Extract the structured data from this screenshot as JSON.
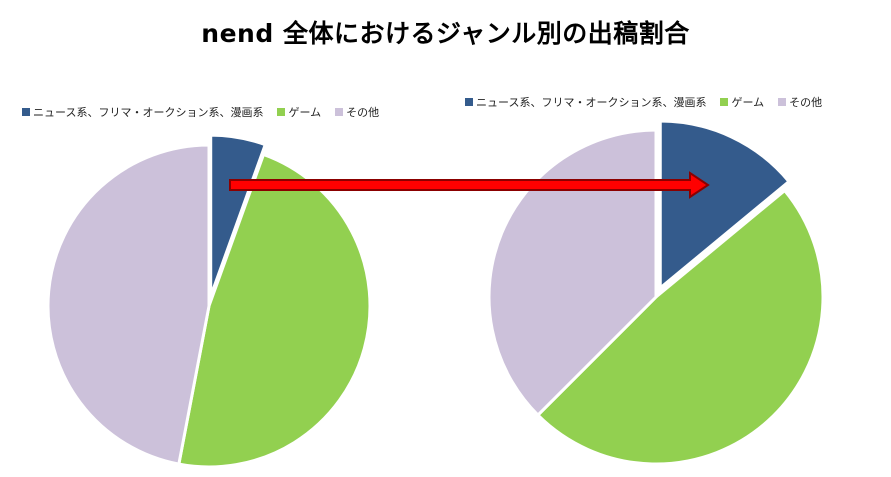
{
  "title": "nend 全体におけるジャンル別の出稿割合",
  "colors": {
    "news": "#345B8C",
    "game": "#92D050",
    "other": "#CCC1DA",
    "arrow_fill": "#FF0000",
    "arrow_stroke": "#8B0000"
  },
  "chart_data": [
    {
      "type": "pie",
      "legend_position": "top-left",
      "labels": [
        "ニュース系、フリマ・オークション系、漫画系",
        "ゲーム",
        "その他"
      ],
      "values": [
        5.5,
        47.5,
        47.0
      ],
      "exploded": "ニュース系、フリマ・オークション系、漫画系"
    },
    {
      "type": "pie",
      "legend_position": "top-right",
      "labels": [
        "ニュース系、フリマ・オークション系、漫画系",
        "ゲーム",
        "その他"
      ],
      "values": [
        14.0,
        48.5,
        37.5
      ],
      "exploded": "ニュース系、フリマ・オークション系、漫画系"
    }
  ]
}
